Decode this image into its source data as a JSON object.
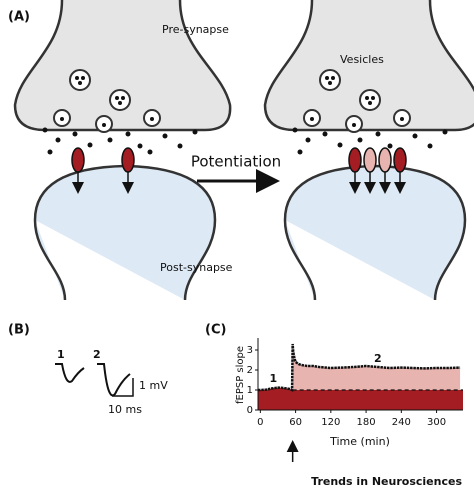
{
  "panel_a": {
    "label": "(A)",
    "pre_synapse": "Pre-synapse",
    "vesicles": "Vesicles",
    "potentiation": "Potentiation",
    "post_synapse": "Post-synapse"
  },
  "panel_b": {
    "label": "(B)",
    "trace_labels": [
      "1",
      "2"
    ],
    "scale_y": "1 mV",
    "scale_x": "10 ms"
  },
  "chart_data": {
    "type": "line",
    "panel_label": "(C)",
    "x_label": "Time (min)",
    "y_label": "fEPSP slope",
    "x": [
      -4,
      0,
      10,
      20,
      30,
      40,
      50,
      54,
      55,
      56,
      58,
      60,
      65,
      70,
      80,
      90,
      100,
      120,
      140,
      160,
      180,
      200,
      220,
      240,
      260,
      280,
      300,
      320,
      340
    ],
    "series": [
      {
        "color": "#111111",
        "values": [
          1,
          1,
          1.02,
          1.08,
          1.12,
          1.1,
          1.05,
          1.0,
          3.3,
          2.9,
          2.6,
          2.4,
          2.3,
          2.25,
          2.2,
          2.2,
          2.15,
          2.1,
          2.12,
          2.15,
          2.2,
          2.15,
          2.1,
          2.12,
          2.1,
          2.08,
          2.1,
          2.1,
          2.12
        ]
      }
    ],
    "reference_line": 1,
    "induction_time": 55,
    "baseline_color": "#a31d22",
    "potentiation_color": "#e8b4b0",
    "xlim": [
      -4,
      345
    ],
    "ylim": [
      0,
      3.6
    ],
    "xticks": [
      0,
      60,
      120,
      180,
      240,
      300
    ],
    "yticks": [
      0,
      1,
      2,
      3
    ],
    "annotations": [
      {
        "text": "1",
        "x": 22,
        "y": 1.55
      },
      {
        "text": "2",
        "x": 200,
        "y": 2.55
      }
    ]
  },
  "footer": "Trends in Neurosciences"
}
